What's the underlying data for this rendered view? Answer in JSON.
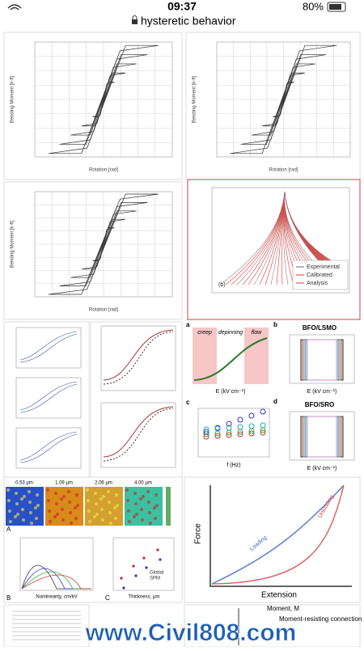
{
  "status_bar": {
    "time": "09:37",
    "battery": "80%"
  },
  "address_bar": {
    "url": "hysteretic behavior"
  },
  "results": [
    {
      "y_label": "Bending Moment [k-ft]",
      "x_label": "Rotation [rad]"
    },
    {
      "y_label": "Bending Moment [k-ft]",
      "x_label": "Rotation [rad]"
    },
    {
      "y_label": "Bending Moment [k-ft]",
      "x_label": "Rotation [rad]"
    },
    {
      "legend": [
        "Experimental",
        "Calibrated",
        "Analysis"
      ],
      "panel": "(b)"
    },
    {
      "panels": [
        "a",
        "b",
        "c",
        "d"
      ],
      "regions": [
        "creep",
        "depinning",
        "flow"
      ],
      "titles": [
        "BFO/LSMO",
        "BFO/SRO"
      ],
      "x_labels": [
        "E (kV cm⁻¹)",
        "f (Hz)"
      ]
    },
    {
      "sizes": [
        "0.53 µm",
        "1.09 µm",
        "2.06 µm",
        "4.00 µm"
      ],
      "x_labels": [
        "Nonlinearity, cm/kV",
        "Thickness, µm"
      ],
      "legend": [
        "Global",
        "SPM"
      ],
      "panels": [
        "A",
        "B",
        "C"
      ]
    },
    {
      "y_label": "Force",
      "x_label": "Extension",
      "curves": [
        "Loading",
        "Unloading"
      ]
    },
    {
      "title": "Moment, M",
      "label": "Moment-resisting connection backbone"
    }
  ],
  "watermark": "www.Civil808.com"
}
